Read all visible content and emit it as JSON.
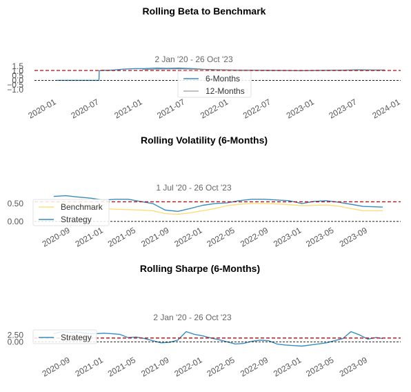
{
  "colors": {
    "strategy": "#348dc1",
    "benchmark": "#fedd78",
    "beta_12m": "#808080",
    "mean_line": "#cc0000",
    "zero_line": "#000000",
    "text": "#555555"
  },
  "chart_data": [
    {
      "type": "line",
      "title": "Rolling Beta to Benchmark",
      "subtitle": "2 Jan '20 - 26 Oct '23",
      "x_ticks": [
        "2020-01",
        "2020-07",
        "2021-01",
        "2021-07",
        "2022-01",
        "2022-07",
        "2023-01",
        "2023-07",
        "2024-01"
      ],
      "x_range": [
        "2019-11-15",
        "2024-01-01"
      ],
      "y_ticks": [
        "1.5",
        "1.0",
        "0.5",
        "0.0",
        "−0.5",
        "−1.0"
      ],
      "ylim": [
        -1.0,
        1.5
      ],
      "mean_line": 1.05,
      "zero_line": 0.0,
      "legend": [
        "6-Months",
        "12-Months"
      ],
      "legend_position": "lower-center",
      "series": [
        {
          "name": "6-Months",
          "x": [
            "2020-01-02",
            "2020-06-29",
            "2020-06-30",
            "2020-07-15",
            "2020-08-01",
            "2020-09-01",
            "2020-10-15",
            "2020-12-01",
            "2021-01-15",
            "2021-03-01",
            "2021-04-15",
            "2021-06-01",
            "2021-08-01",
            "2021-09-15",
            "2021-11-01",
            "2022-01-01",
            "2022-03-01",
            "2022-05-01",
            "2022-07-01",
            "2022-09-01",
            "2022-11-01",
            "2023-01-01",
            "2023-03-01",
            "2023-05-01",
            "2023-07-01",
            "2023-09-01",
            "2023-10-26"
          ],
          "values": [
            0.0,
            0.0,
            1.02,
            1.08,
            1.06,
            1.1,
            1.2,
            1.24,
            1.26,
            1.3,
            1.27,
            1.3,
            1.24,
            1.18,
            1.14,
            1.1,
            1.08,
            1.07,
            1.06,
            1.05,
            1.03,
            1.05,
            1.07,
            1.08,
            1.12,
            1.1,
            1.1
          ]
        },
        {
          "name": "12-Months",
          "x": [
            "2020-12-30",
            "2021-03-01",
            "2021-06-01",
            "2021-09-01",
            "2021-12-01",
            "2022-03-01",
            "2022-06-01",
            "2022-09-01",
            "2022-12-01",
            "2023-03-01",
            "2023-06-01",
            "2023-09-01",
            "2023-10-26"
          ],
          "values": [
            1.15,
            1.2,
            1.22,
            1.18,
            1.12,
            1.08,
            1.06,
            1.05,
            1.04,
            1.05,
            1.07,
            1.08,
            1.07
          ]
        }
      ]
    },
    {
      "type": "line",
      "title": "Rolling Volatility (6-Months)",
      "subtitle": "1 Jul '20 - 26 Oct '23",
      "x_ticks": [
        "2020-09",
        "2021-01",
        "2021-05",
        "2021-09",
        "2022-01",
        "2022-05",
        "2022-09",
        "2023-01",
        "2023-05",
        "2023-09"
      ],
      "x_range": [
        "2020-06-01",
        "2023-12-31"
      ],
      "y_ticks": [
        "0.50",
        "0.00"
      ],
      "ylim": [
        -0.1,
        0.75
      ],
      "mean_line": 0.55,
      "zero_line": 0.0,
      "legend": [
        "Benchmark",
        "Strategy"
      ],
      "legend_position": "lower-left",
      "series": [
        {
          "name": "Benchmark",
          "x": [
            "2020-07-01",
            "2020-08-15",
            "2020-10-01",
            "2020-11-15",
            "2021-01-01",
            "2021-02-15",
            "2021-04-01",
            "2021-05-15",
            "2021-07-01",
            "2021-08-15",
            "2021-10-01",
            "2021-11-15",
            "2022-01-01",
            "2022-02-15",
            "2022-04-01",
            "2022-05-15",
            "2022-07-01",
            "2022-08-15",
            "2022-10-01",
            "2022-11-15",
            "2023-01-01",
            "2023-02-15",
            "2023-04-01",
            "2023-05-15",
            "2023-07-01",
            "2023-08-15",
            "2023-10-26"
          ],
          "values": [
            0.55,
            0.5,
            0.45,
            0.4,
            0.36,
            0.34,
            0.33,
            0.32,
            0.3,
            0.22,
            0.2,
            0.24,
            0.3,
            0.36,
            0.44,
            0.48,
            0.5,
            0.5,
            0.49,
            0.47,
            0.44,
            0.45,
            0.46,
            0.43,
            0.36,
            0.3,
            0.3
          ]
        },
        {
          "name": "Strategy",
          "x": [
            "2020-07-01",
            "2020-08-15",
            "2020-10-01",
            "2020-11-15",
            "2021-01-01",
            "2021-02-15",
            "2021-04-01",
            "2021-05-15",
            "2021-07-01",
            "2021-08-15",
            "2021-10-01",
            "2021-11-15",
            "2022-01-01",
            "2022-02-15",
            "2022-04-01",
            "2022-05-15",
            "2022-07-01",
            "2022-08-15",
            "2022-10-01",
            "2022-11-15",
            "2023-01-01",
            "2023-02-15",
            "2023-04-01",
            "2023-05-15",
            "2023-07-01",
            "2023-08-15",
            "2023-10-26"
          ],
          "values": [
            0.7,
            0.72,
            0.68,
            0.65,
            0.6,
            0.62,
            0.62,
            0.56,
            0.5,
            0.32,
            0.28,
            0.36,
            0.45,
            0.5,
            0.52,
            0.58,
            0.62,
            0.62,
            0.6,
            0.58,
            0.5,
            0.56,
            0.58,
            0.54,
            0.48,
            0.42,
            0.4
          ]
        }
      ]
    },
    {
      "type": "line",
      "title": "Rolling Sharpe (6-Months)",
      "subtitle": "2 Jan '20 - 26 Oct '23",
      "x_ticks": [
        "2020-09",
        "2021-01",
        "2021-05",
        "2021-09",
        "2022-01",
        "2022-05",
        "2022-09",
        "2023-01",
        "2023-05",
        "2023-09"
      ],
      "x_range": [
        "2020-06-01",
        "2023-12-31"
      ],
      "y_ticks": [
        "2.50",
        "0.00"
      ],
      "ylim": [
        -2.5,
        6.5
      ],
      "mean_line": 1.4,
      "zero_line": 0.0,
      "legend": [
        "Strategy"
      ],
      "legend_position": "lower-left",
      "series": [
        {
          "name": "Strategy",
          "x": [
            "2020-07-01",
            "2020-08-01",
            "2020-09-01",
            "2020-10-01",
            "2020-11-01",
            "2020-12-01",
            "2021-01-01",
            "2021-02-01",
            "2021-03-01",
            "2021-04-01",
            "2021-05-01",
            "2021-06-01",
            "2021-07-01",
            "2021-08-01",
            "2021-09-01",
            "2021-10-01",
            "2021-11-01",
            "2021-12-01",
            "2022-01-01",
            "2022-02-01",
            "2022-03-01",
            "2022-04-01",
            "2022-05-01",
            "2022-06-01",
            "2022-07-01",
            "2022-08-01",
            "2022-09-01",
            "2022-10-01",
            "2022-11-01",
            "2022-12-01",
            "2023-01-01",
            "2023-02-01",
            "2023-03-01",
            "2023-04-01",
            "2023-05-01",
            "2023-06-01",
            "2023-07-01",
            "2023-08-01",
            "2023-09-01",
            "2023-10-01",
            "2023-10-26"
          ],
          "values": [
            3.0,
            3.8,
            3.5,
            3.6,
            3.1,
            3.0,
            3.2,
            3.0,
            2.8,
            1.6,
            1.8,
            1.2,
            0.4,
            -0.4,
            -0.2,
            0.6,
            3.8,
            2.8,
            2.2,
            1.4,
            0.8,
            0.0,
            -0.8,
            -0.6,
            0.2,
            0.6,
            0.4,
            -0.8,
            -1.2,
            -1.4,
            -1.6,
            -1.2,
            -0.8,
            -0.4,
            0.4,
            1.2,
            3.8,
            2.6,
            1.0,
            1.6,
            1.2
          ]
        }
      ]
    }
  ]
}
